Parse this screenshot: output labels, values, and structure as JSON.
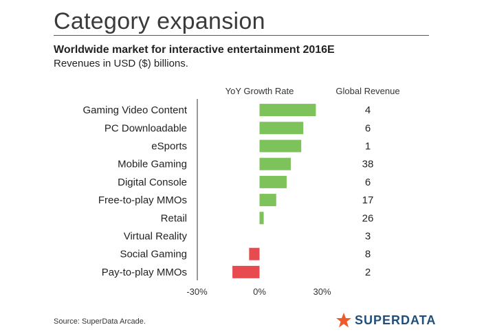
{
  "header": {
    "title": "Category expansion"
  },
  "chart_data": {
    "type": "bar",
    "orientation": "horizontal",
    "title": "Worldwide market for interactive entertainment 2016E",
    "subtitle": "Revenues in USD ($) billions.",
    "column_headers": {
      "growth": "YoY Growth Rate",
      "revenue": "Global Revenue"
    },
    "categories": [
      "Gaming Video Content",
      "PC Downloadable",
      "eSports",
      "Mobile Gaming",
      "Digital Console",
      "Free-to-play MMOs",
      "Retail",
      "Virtual Reality",
      "Social Gaming",
      "Pay-to-play MMOs"
    ],
    "series": [
      {
        "values": [
          27,
          21,
          20,
          15,
          13,
          8,
          2,
          0,
          -5,
          -13
        ]
      }
    ],
    "revenue": [
      "4",
      "6",
      "1",
      "38",
      "6",
      "17",
      "26",
      "3",
      "8",
      "2"
    ],
    "xlim": [
      -30,
      30
    ],
    "x_ticks": [
      "-30%",
      "0%",
      "30%"
    ],
    "colors": {
      "positive": "#7dc25a",
      "negative": "#e84b4f"
    },
    "grid": false
  },
  "footer": {
    "source": "Source: SuperData Arcade.",
    "brand": "SUPERDATA",
    "brand_icon": "star-icon",
    "brand_color": "#f0592a"
  }
}
